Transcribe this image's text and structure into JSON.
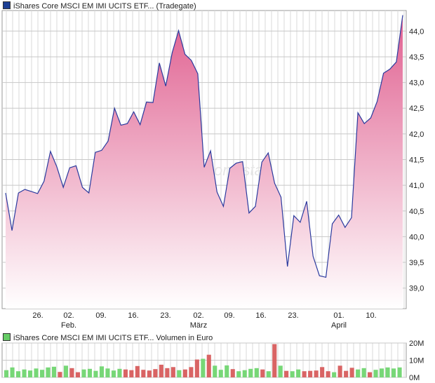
{
  "legend_price": {
    "text": "iShares Core MSCI EM IMI UCITS ETF...",
    "suffix": "(Tradegate)",
    "color": "#1c3f94"
  },
  "legend_volume": {
    "text": "iShares Core MSCI EM IMI UCITS ETF...",
    "suffix": "Volumen in Euro",
    "color": "#66cc66"
  },
  "watermark": "onvista",
  "colors": {
    "line": "#2b3a9e",
    "fill_top": "#e06090",
    "fill_bottom": "#ffffff",
    "vol_up": "#77d777",
    "vol_down": "#d96464",
    "grid": "#d9d9d9"
  },
  "chart_data": [
    {
      "type": "area",
      "title": "",
      "ylim": [
        38.6,
        44.4
      ],
      "y_ticks": [
        "44,0",
        "43,5",
        "43,0",
        "42,5",
        "42,0",
        "41,5",
        "41,0",
        "40,5",
        "40,0",
        "39,5",
        "39,0"
      ],
      "x_ticks": [
        {
          "label": "26.",
          "sub": ""
        },
        {
          "label": "02.",
          "sub": "Feb."
        },
        {
          "label": "09.",
          "sub": ""
        },
        {
          "label": "16.",
          "sub": ""
        },
        {
          "label": "23.",
          "sub": ""
        },
        {
          "label": "02.",
          "sub": "März"
        },
        {
          "label": "09.",
          "sub": ""
        },
        {
          "label": "16.",
          "sub": ""
        },
        {
          "label": "23.",
          "sub": ""
        },
        {
          "label": "01.",
          "sub": "April"
        },
        {
          "label": "10.",
          "sub": ""
        }
      ],
      "values": [
        40.85,
        40.12,
        40.85,
        40.92,
        40.88,
        40.84,
        41.08,
        41.66,
        41.36,
        40.96,
        41.34,
        41.38,
        40.96,
        40.85,
        41.64,
        41.68,
        41.86,
        42.5,
        42.17,
        42.2,
        42.43,
        42.18,
        42.62,
        42.61,
        43.38,
        42.93,
        43.58,
        44.01,
        43.55,
        43.43,
        43.17,
        41.35,
        41.67,
        40.87,
        40.59,
        41.33,
        41.43,
        41.46,
        40.46,
        40.59,
        41.45,
        41.63,
        41.04,
        40.77,
        39.42,
        40.41,
        40.28,
        40.69,
        39.62,
        39.24,
        39.21,
        40.25,
        40.42,
        40.18,
        40.37,
        42.41,
        42.2,
        42.31,
        42.63,
        43.18,
        43.26,
        43.4,
        44.31
      ]
    },
    {
      "type": "bar",
      "title": "",
      "ylim": [
        0,
        20
      ],
      "y_ticks": [
        "20M",
        "10M",
        "0M"
      ],
      "values": [
        4.2,
        5.8,
        3.6,
        4.6,
        4.0,
        5.2,
        4.4,
        5.8,
        6.2,
        3.2,
        6.8,
        5.4,
        3.0,
        4.6,
        5.0,
        3.8,
        6.4,
        5.2,
        4.0,
        5.0,
        4.6,
        4.2,
        6.6,
        4.4,
        4.0,
        4.8,
        7.4,
        5.4,
        6.0,
        4.2,
        4.6,
        6.0,
        10.4,
        10.8,
        13.2,
        6.8,
        4.4,
        7.0,
        4.8,
        3.6,
        4.2,
        5.0,
        5.4,
        4.6,
        3.6,
        19.4,
        6.8,
        3.8,
        3.6,
        4.6,
        3.6,
        3.8,
        4.0,
        6.0,
        3.6,
        3.0,
        6.8,
        3.8,
        5.6,
        4.6,
        5.4,
        3.0,
        4.4,
        5.2,
        5.8,
        5.2,
        5.8
      ],
      "up": [
        1,
        1,
        1,
        1,
        1,
        1,
        1,
        1,
        1,
        0,
        1,
        0,
        0,
        1,
        1,
        1,
        1,
        1,
        1,
        1,
        0,
        0,
        0,
        0,
        0,
        0,
        0,
        0,
        0,
        1,
        0,
        0,
        0,
        1,
        0,
        1,
        1,
        1,
        0,
        1,
        1,
        1,
        1,
        0,
        1,
        0,
        1,
        0,
        1,
        1,
        0,
        0,
        0,
        0,
        0,
        1,
        0,
        0,
        0,
        1,
        1,
        0,
        1,
        1,
        1,
        1,
        1
      ]
    }
  ]
}
